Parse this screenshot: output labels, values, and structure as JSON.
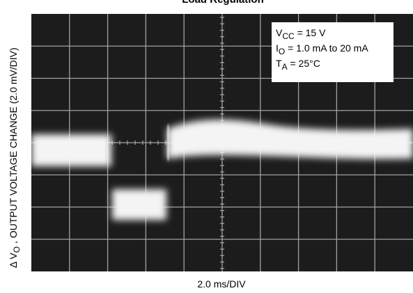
{
  "header": {
    "title": "Load Regulation"
  },
  "legend": {
    "lines": [
      {
        "main": "V",
        "sub": "CC",
        "rest": " = 15 V"
      },
      {
        "main": "I",
        "sub": "O",
        "rest": " = 1.0 mA to 20 mA"
      },
      {
        "main": "T",
        "sub": "A",
        "rest": " = 25°C"
      }
    ]
  },
  "y_label": {
    "prefix": "Δ V",
    "sub": "O",
    "rest": " , OUTPUT VOLTAGE CHANGE (2.0 mV/DIV)"
  },
  "x_label": "2.0 ms/DIV"
}
